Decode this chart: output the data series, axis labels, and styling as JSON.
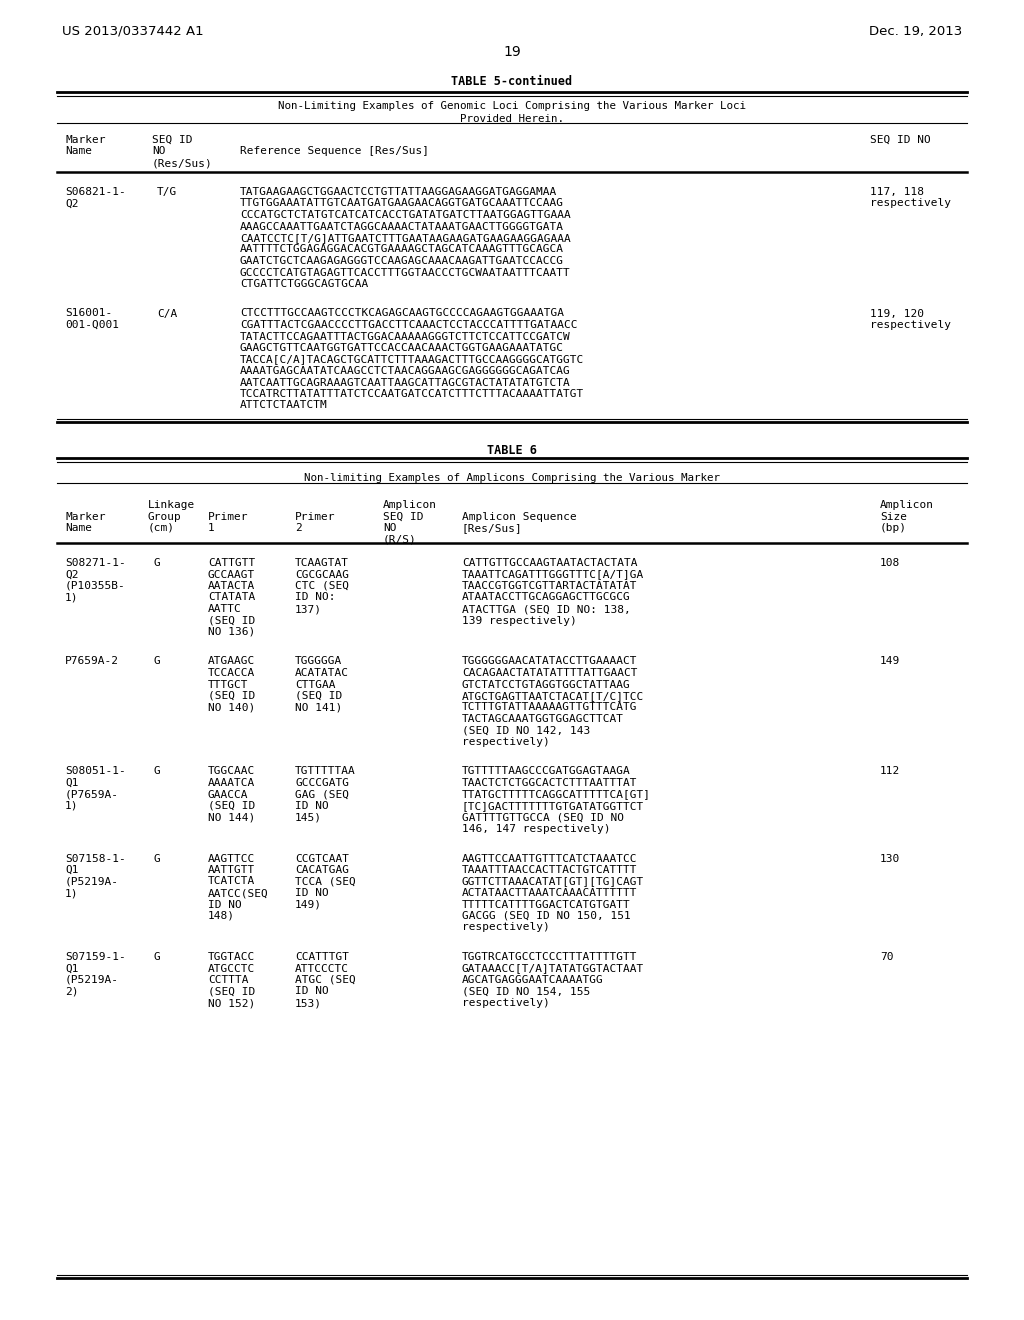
{
  "bg_color": "#ffffff",
  "header_left": "US 2013/0337442 A1",
  "header_right": "Dec. 19, 2013",
  "page_number": "19",
  "table5_title": "TABLE 5-continued",
  "table5_subtitle1": "Non-Limiting Examples of Genomic Loci Comprising the Various Marker Loci",
  "table5_subtitle2": "Provided Herein.",
  "table6_title": "TABLE 6",
  "table6_subtitle": "Non-limiting Examples of Amplicons Comprising the Various Marker",
  "t5_seq1_lines": [
    "TATGAAGAAGCTGGAACTCCTGTTATTAAGGAGAAGGATGAGGAMAA",
    "TTGTGGAAATATTGTCAATGATGAAGAACAGGTGATGCAAATTCCAAG",
    "CCCATGCTCTATGTCATCATCACCTGATATGATCTTAATGGAGTTGAAA",
    "AAAGCCAAATTGAATCTAGGCAAAACTATAAATGAACTTGGGGTGATA",
    "CAATCCTC[T/G]ATTGAATCTTTGAATAAGAAGATGAAGAAGGAGAAA",
    "AATTTTCTGGAGAGGACACGTGAAAAGCTAGCATCAAAGTTTGCAGCA",
    "GAATCTGCTCAAGAGAGGGTCCAAGAGCAAACAAGATTGAATCCACCG",
    "GCCCCTCATGTAGAGTTCACCTTTGGTAACCCTGCWAATAATTTCAATT",
    "CTGATTCTGGGCAGTGCAA"
  ],
  "t5_seq2_lines": [
    "CTCCTTTGCCAAGTCCCTKCAGAGCAAGTGCCCCAGAAGTGGAAATGA",
    "CGATTTACTCGAACCCCTTGACCTTCAAACTCCTACCCATTTTGATAACC",
    "TATACTTCCAGAATTTACTGGACAAAAAGGGTCTTCTCCATTCCGATCW",
    "GAAGCTGTTCAATGGTGATTCCACCAACAAACTGGTGAAGAAATATGC",
    "TACCA[C/A]TACAGCTGCATTCTTTAAAGACTTTGCCAAGGGGCATGGTC",
    "AAAATGAGCAATATCAAGCCTCTAACAGGAAGCGAGGGGGGCAGATCAG",
    "AATCAATTGCAGRAAAGTCAATTAAGCATTAGCGTACTATATATGTCTA",
    "TCCATRCTTATATTTATCTCCAATGATCCATCTTTCTTTACAAAATTATGT",
    "ATTCTCTAATCTM"
  ],
  "t6_rows": [
    {
      "marker": [
        "S08271-1-",
        "Q2",
        "(P10355B-",
        "1)"
      ],
      "linkage": "G",
      "p1": [
        "CATTGTT",
        "GCCAAGT",
        "AATACTA",
        "CTATATA",
        "AATTC",
        "(SEQ ID",
        "NO 136)"
      ],
      "p2": [
        "TCAAGTAT",
        "CGCGCAAG",
        "CTC (SEQ",
        "ID NO:",
        "137)"
      ],
      "seq": [
        "CATTGTTGCCAAGTAATACTACTATA",
        "TAAATTCAGATTTGGGTTTC[A/T]GA",
        "TAACCGTGGTCGTTARTACTATATAT",
        "ATAATACCTTGCAGGAGCTTGCGCG",
        "ATACTTGA (SEQ ID NO: 138,",
        "139 respectively)"
      ],
      "size": "108"
    },
    {
      "marker": [
        "P7659A-2"
      ],
      "linkage": "G",
      "p1": [
        "ATGAAGC",
        "TCCACCA",
        "TTTGCT",
        "(SEQ ID",
        "NO 140)"
      ],
      "p2": [
        "TGGGGGA",
        "ACATATAC",
        "CTTGAA",
        "(SEQ ID",
        "NO 141)"
      ],
      "seq": [
        "TGGGGGGAACATATACCTTGAAAACT",
        "CACAGAACTATATATTTTATTGAACT",
        "GTCTATCCTGTAGGTGGCTATTAAG",
        "ATGCTGAGTTAATCTACAT[T/C]TCC",
        "TCTTTGTATTAAAAAGTTGTTTCATG",
        "TACTAGCAAATGGTGGAGCTTCAT",
        "(SEQ ID NO 142, 143",
        "respectively)"
      ],
      "size": "149"
    },
    {
      "marker": [
        "S08051-1-",
        "Q1",
        "(P7659A-",
        "1)"
      ],
      "linkage": "G",
      "p1": [
        "TGGCAAC",
        "AAAATCA",
        "GAACCA",
        "(SEQ ID",
        "NO 144)"
      ],
      "p2": [
        "TGTTTTTAA",
        "GCCCGATG",
        "GAG (SEQ",
        "ID NO",
        "145)"
      ],
      "seq": [
        "TGTTTTTAAGCCCGATGGAGTAAGA",
        "TAACTCTCTGGCACTCTTTAATTTAT",
        "TTATGCTTTTTCAGGCATTTTTCA[GT]",
        "[TC]GACTTTTTTTGTGATATGGTTCT",
        "GATTTTGTTGCCA (SEQ ID NO",
        "146, 147 respectively)"
      ],
      "size": "112"
    },
    {
      "marker": [
        "S07158-1-",
        "Q1",
        "(P5219A-",
        "1)"
      ],
      "linkage": "G",
      "p1": [
        "AAGTTCC",
        "AATTGTT",
        "TCATCTA",
        "AATCC(SEQ",
        "ID NO",
        "148)"
      ],
      "p2": [
        "CCGTCAAT",
        "CACATGAG",
        "TCCA (SEQ",
        "ID NO",
        "149)"
      ],
      "seq": [
        "AAGTTCCAATTGTTTCATCTAAATCC",
        "TAAATTTAACCACTTACTGTCATTTT",
        "GGTTCTTAAACATAT[GT][TG]CAGT",
        "ACTATAACTTAAATCAAACATTTTTT",
        "TTTTTCATTTTGGACTCATGTGATT",
        "GACGG (SEQ ID NO 150, 151",
        "respectively)"
      ],
      "size": "130"
    },
    {
      "marker": [
        "S07159-1-",
        "Q1",
        "(P5219A-",
        "2)"
      ],
      "linkage": "G",
      "p1": [
        "TGGTACC",
        "ATGCCTC",
        "CCTTTA",
        "(SEQ ID",
        "NO 152)"
      ],
      "p2": [
        "CCATTTGT",
        "ATTCCCTC",
        "ATGC (SEQ",
        "ID NO",
        "153)"
      ],
      "seq": [
        "TGGTRCATGCCTCCCTTTATTTTGTT",
        "GATAAACC[T/A]TATATGGTACTAAT",
        "AGCATGAGGGAATCAAAATGG",
        "(SEQ ID NO 154, 155",
        "respectively)"
      ],
      "size": "70"
    }
  ]
}
